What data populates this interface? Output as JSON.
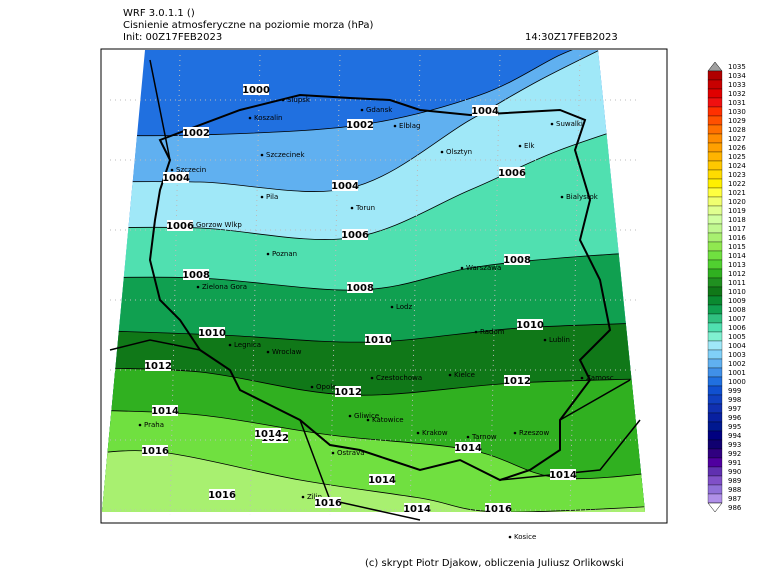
{
  "header": {
    "model": "WRF 3.0.1.1 ()",
    "title": "Cisnienie atmosferyczne na poziomie morza (hPa)",
    "init": "Init: 00Z17FEB2023",
    "valid": "14:30Z17FEB2023"
  },
  "footer": "(c) skrypt Piotr Djakow, obliczenia Juliusz Orlikowski",
  "cities": [
    "Slupsk",
    "Koszalin",
    "Gdansk",
    "Elblag",
    "Suwalki",
    "Szczecinek",
    "Olsztyn",
    "Elk",
    "Szczecin",
    "Pila",
    "Torun",
    "Bialystok",
    "Gorzow Wlkp",
    "Poznan",
    "Warszawa",
    "Zielona Gora",
    "Lodz",
    "Radom",
    "Lublin",
    "Legnica",
    "Wroclaw",
    "Opole",
    "Czestochowa",
    "Kielce",
    "Zamosc",
    "Gliwice",
    "Katowice",
    "Krakow",
    "Tarnow",
    "Rzeszow",
    "Praha",
    "Ostrava",
    "Zilin",
    "Kosice"
  ],
  "isobar_labels": [
    1000,
    1002,
    1002,
    1004,
    1004,
    1004,
    1006,
    1006,
    1006,
    1008,
    1008,
    1008,
    1010,
    1010,
    1010,
    1012,
    1012,
    1012,
    1012,
    1014,
    1014,
    1014,
    1014,
    1014,
    1014,
    1016,
    1016,
    1016,
    1016
  ],
  "colorbar": {
    "values": [
      1035,
      1034,
      1033,
      1032,
      1031,
      1030,
      1029,
      1028,
      1027,
      1026,
      1025,
      1024,
      1023,
      1022,
      1021,
      1020,
      1019,
      1018,
      1017,
      1016,
      1015,
      1014,
      1013,
      1012,
      1011,
      1010,
      1009,
      1008,
      1007,
      1006,
      1005,
      1004,
      1003,
      1002,
      1001,
      1000,
      999,
      998,
      997,
      996,
      995,
      994,
      993,
      992,
      991,
      990,
      989,
      988,
      987,
      986
    ],
    "colors": [
      "#a0a0a0",
      "#b00000",
      "#c80000",
      "#e00000",
      "#f01010",
      "#ff3000",
      "#ff5000",
      "#ff7000",
      "#ff8c00",
      "#ffa000",
      "#ffb400",
      "#ffc800",
      "#ffdc00",
      "#fff000",
      "#ffff40",
      "#f0ff70",
      "#e0ff90",
      "#d0ffa0",
      "#c0f890",
      "#a8f070",
      "#90e850",
      "#70e040",
      "#50d030",
      "#30b020",
      "#209020",
      "#107818",
      "#0a8a30",
      "#10a050",
      "#30c080",
      "#50e0b0",
      "#80f0d0",
      "#a0e8f8",
      "#80d0f8",
      "#60b0f0",
      "#4090e8",
      "#2070e0",
      "#1050d0",
      "#1040c0",
      "#1030b0",
      "#0820a0",
      "#001890",
      "#000080",
      "#100070",
      "#300080",
      "#5000a0",
      "#6030b0",
      "#8050c8",
      "#9070d8",
      "#b090e8",
      "#ffffff"
    ]
  }
}
